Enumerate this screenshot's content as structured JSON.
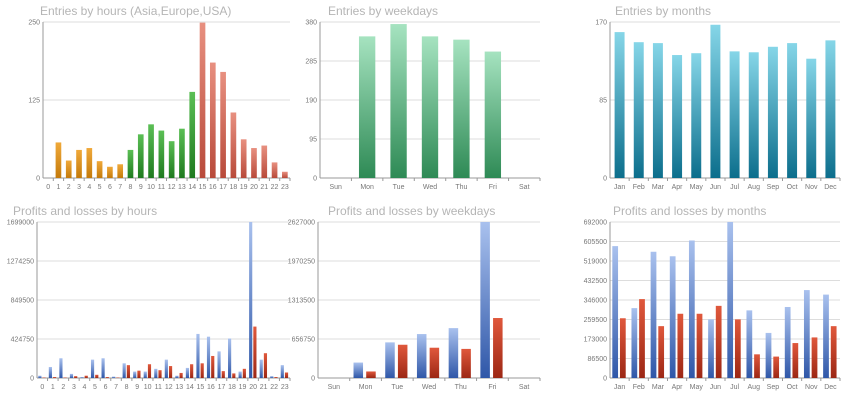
{
  "colors": {
    "orange": [
      "#f0a93a",
      "#c47a0a"
    ],
    "green": [
      "#5bbf55",
      "#1f7a1f"
    ],
    "red": [
      "#e89080",
      "#b84a3a"
    ],
    "mint": [
      "#a6e3c0",
      "#2e8a55"
    ],
    "teal": [
      "#86d6e8",
      "#0c6e8c"
    ],
    "blue": [
      "#a9c1ee",
      "#2f57a8"
    ],
    "loss": [
      "#e0583c",
      "#9c2714"
    ]
  },
  "chart_data": [
    {
      "type": "bar",
      "title": "Entries by hours (Asia,Europe,USA)",
      "categories": [
        "0",
        "1",
        "2",
        "3",
        "4",
        "5",
        "6",
        "7",
        "8",
        "9",
        "10",
        "11",
        "12",
        "13",
        "14",
        "15",
        "16",
        "17",
        "18",
        "19",
        "20",
        "21",
        "22",
        "23"
      ],
      "y_ticks": [
        "0",
        "125",
        "250"
      ],
      "ylim": [
        0,
        250
      ],
      "values": [
        0,
        57,
        28,
        45,
        48,
        27,
        18,
        22,
        45,
        70,
        86,
        76,
        59,
        79,
        138,
        249,
        185,
        170,
        105,
        62,
        48,
        52,
        25,
        10
      ],
      "color_groups": [
        "orange",
        "orange",
        "orange",
        "orange",
        "orange",
        "orange",
        "orange",
        "orange",
        "green",
        "green",
        "green",
        "green",
        "green",
        "green",
        "green",
        "red",
        "red",
        "red",
        "red",
        "red",
        "red",
        "red",
        "red",
        "red"
      ]
    },
    {
      "type": "bar",
      "title": "Entries by weekdays",
      "categories": [
        "Sun",
        "Mon",
        "Tue",
        "Wed",
        "Thu",
        "Fri",
        "Sat"
      ],
      "y_ticks": [
        "0",
        "95",
        "190",
        "285",
        "380"
      ],
      "ylim": [
        0,
        380
      ],
      "values": [
        0,
        345,
        375,
        345,
        337,
        308,
        0
      ],
      "color": "mint"
    },
    {
      "type": "bar",
      "title": "Entries by months",
      "categories": [
        "Jan",
        "Feb",
        "Mar",
        "Apr",
        "May",
        "Jun",
        "Jul",
        "Aug",
        "Sep",
        "Oct",
        "Nov",
        "Dec"
      ],
      "y_ticks": [
        "0",
        "85",
        "170"
      ],
      "ylim": [
        0,
        170
      ],
      "values": [
        159,
        148,
        147,
        134,
        136,
        167,
        138,
        137,
        143,
        147,
        130,
        150
      ],
      "color": "teal"
    },
    {
      "type": "bar",
      "title": "Profits and losses by hours",
      "categories": [
        "0",
        "1",
        "2",
        "3",
        "4",
        "5",
        "6",
        "7",
        "8",
        "9",
        "10",
        "11",
        "12",
        "13",
        "14",
        "15",
        "16",
        "17",
        "18",
        "19",
        "20",
        "21",
        "22",
        "23"
      ],
      "y_ticks": [
        "0",
        "424750",
        "849500",
        "1274250",
        "1699000"
      ],
      "ylim": [
        0,
        1699000
      ],
      "series": [
        {
          "name": "Profits",
          "color": "blue",
          "values": [
            25000,
            120000,
            215000,
            45000,
            10000,
            200000,
            215000,
            15000,
            160000,
            70000,
            70000,
            100000,
            200000,
            25000,
            110000,
            480000,
            450000,
            290000,
            430000,
            70000,
            1699000,
            200000,
            20000,
            140000
          ]
        },
        {
          "name": "Losses",
          "color": "loss",
          "values": [
            5000,
            10000,
            5000,
            20000,
            25000,
            35000,
            10000,
            5000,
            140000,
            80000,
            150000,
            85000,
            130000,
            55000,
            150000,
            160000,
            240000,
            75000,
            50000,
            100000,
            560000,
            270000,
            10000,
            60000
          ]
        }
      ]
    },
    {
      "type": "bar",
      "title": "Profits and losses by weekdays",
      "categories": [
        "Sun",
        "Mon",
        "Tue",
        "Wed",
        "Thu",
        "Fri",
        "Sat"
      ],
      "y_ticks": [
        "0",
        "656750",
        "1313500",
        "1970250",
        "2627000"
      ],
      "ylim": [
        0,
        2627000
      ],
      "series": [
        {
          "name": "Profits",
          "color": "blue",
          "values": [
            0,
            260000,
            600000,
            740000,
            840000,
            2627000,
            0
          ]
        },
        {
          "name": "Losses",
          "color": "loss",
          "values": [
            0,
            110000,
            560000,
            510000,
            490000,
            1010000,
            0
          ]
        }
      ]
    },
    {
      "type": "bar",
      "title": "Profits and losses by months",
      "categories": [
        "Jan",
        "Feb",
        "Mar",
        "Apr",
        "May",
        "Jun",
        "Jul",
        "Aug",
        "Sep",
        "Oct",
        "Nov",
        "Dec"
      ],
      "y_ticks": [
        "0",
        "86500",
        "173000",
        "259500",
        "346000",
        "432500",
        "519000",
        "605500",
        "692000"
      ],
      "ylim": [
        0,
        692000
      ],
      "series": [
        {
          "name": "Profits",
          "color": "blue",
          "values": [
            585000,
            310000,
            560000,
            540000,
            610000,
            260000,
            692000,
            300000,
            200000,
            315000,
            390000,
            370000
          ]
        },
        {
          "name": "Losses",
          "color": "loss",
          "values": [
            265000,
            350000,
            230000,
            285000,
            285000,
            320000,
            260000,
            105000,
            95000,
            155000,
            180000,
            230000
          ]
        }
      ]
    }
  ]
}
